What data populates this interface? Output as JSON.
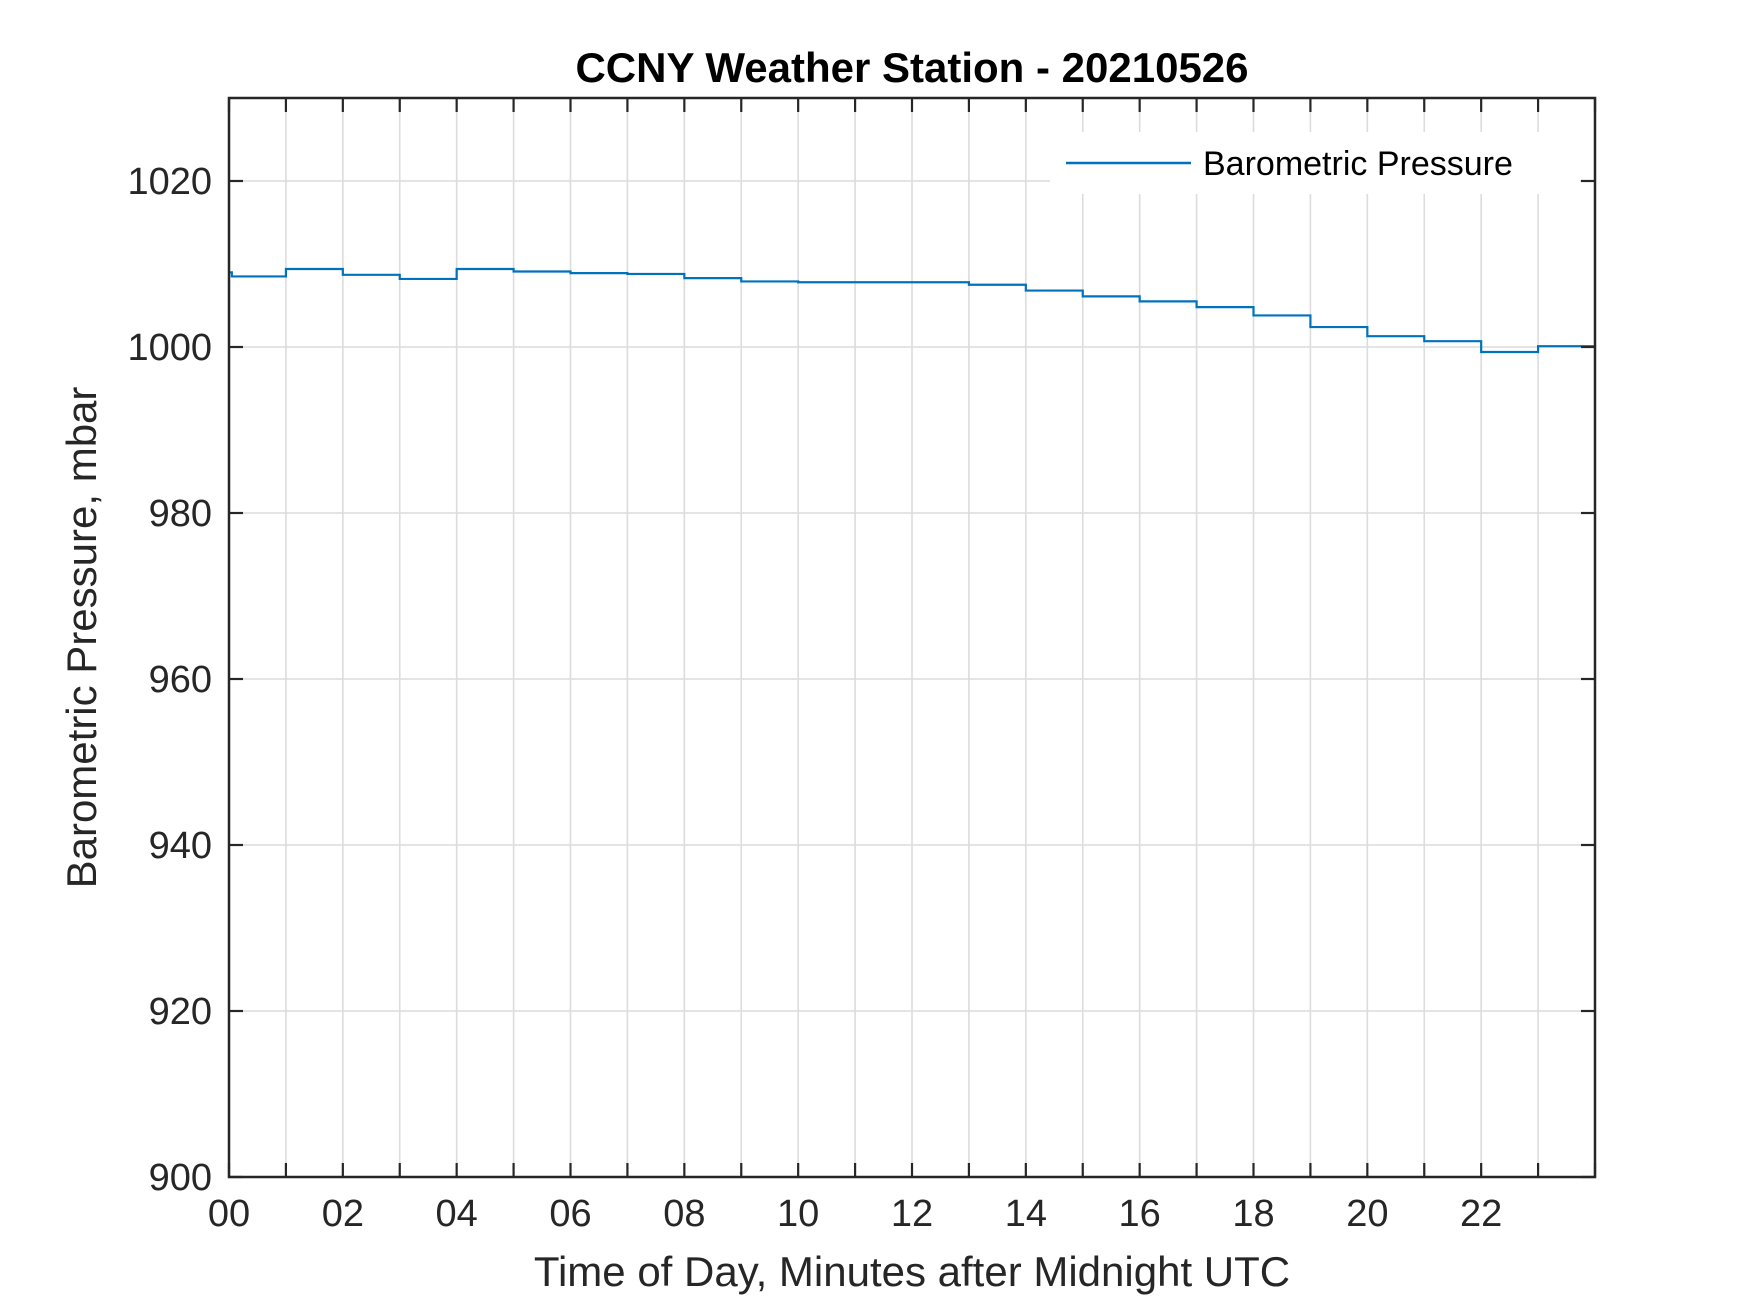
{
  "chart_data": {
    "type": "line",
    "title": "CCNY Weather Station - 20210526",
    "xlabel": "Time of Day, Minutes after Midnight UTC",
    "ylabel": "Barometric Pressure, mbar",
    "xlim": [
      0,
      24
    ],
    "ylim": [
      900,
      1030
    ],
    "x_ticks": [
      0,
      2,
      4,
      6,
      8,
      10,
      12,
      14,
      16,
      18,
      20,
      22
    ],
    "x_tick_labels": [
      "00",
      "02",
      "04",
      "06",
      "08",
      "10",
      "12",
      "14",
      "16",
      "18",
      "20",
      "22"
    ],
    "x_grid": [
      0,
      1,
      2,
      3,
      4,
      5,
      6,
      7,
      8,
      9,
      10,
      11,
      12,
      13,
      14,
      15,
      16,
      17,
      18,
      19,
      20,
      21,
      22,
      23,
      24
    ],
    "y_ticks": [
      900,
      920,
      940,
      960,
      980,
      1000,
      1020
    ],
    "y_tick_labels": [
      "900",
      "920",
      "940",
      "960",
      "980",
      "1000",
      "1020"
    ],
    "grid": true,
    "legend_position": "top-right",
    "series": [
      {
        "name": "Barometric Pressure",
        "color": "#0072BD",
        "step": true,
        "x": [
          0,
          0.05,
          1,
          2,
          3,
          4,
          5,
          6,
          7,
          8,
          9,
          10,
          11,
          12,
          13,
          14,
          15,
          16,
          17,
          18,
          19,
          20,
          21,
          22,
          23,
          24
        ],
        "values": [
          1009.0,
          1008.5,
          1009.4,
          1008.7,
          1008.2,
          1009.4,
          1009.1,
          1008.9,
          1008.8,
          1008.3,
          1007.9,
          1007.8,
          1007.8,
          1007.8,
          1007.5,
          1006.8,
          1006.1,
          1005.5,
          1004.8,
          1003.8,
          1002.4,
          1001.3,
          1000.7,
          999.4,
          1000.1,
          1000.0
        ]
      }
    ]
  }
}
